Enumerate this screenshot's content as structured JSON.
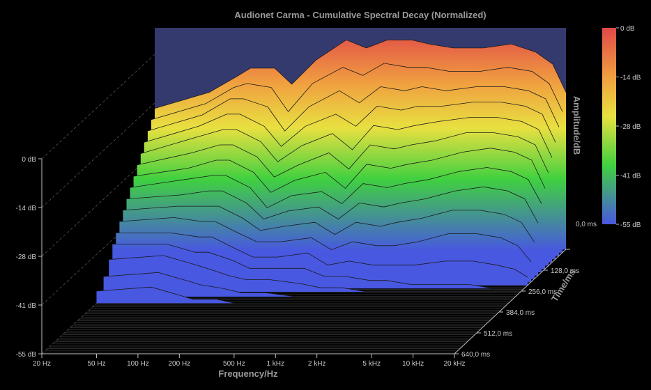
{
  "chart_data": {
    "type": "waterfall-3d",
    "title": "Audionet Carma - Cumulative Spectral Decay (Normalized)",
    "xlabel": "Frequency/Hz",
    "ylabel": "Amplitude/dB",
    "zlabel": "Time/ms",
    "x_scale": "log",
    "xlim": [
      20,
      20000
    ],
    "ylim": [
      -55,
      0
    ],
    "zlim": [
      0,
      640
    ],
    "x_ticks": [
      "20 Hz",
      "50 Hz",
      "100 Hz",
      "200 Hz",
      "500 Hz",
      "1 kHz",
      "2 kHz",
      "5 kHz",
      "10 kHz",
      "20 kHz"
    ],
    "x_tick_values": [
      20,
      50,
      100,
      200,
      500,
      1000,
      2000,
      5000,
      10000,
      20000
    ],
    "y_ticks": [
      "0 dB",
      "-14 dB",
      "-28 dB",
      "-41 dB",
      "-55 dB"
    ],
    "z_ticks": [
      "0,0 ms",
      "128,0 ms",
      "256,0 ms",
      "384,0 ms",
      "512,0 ms",
      "640,0 ms"
    ],
    "colorbar_labels": [
      "0 dB",
      "-14 dB",
      "-28 dB",
      "-41 dB",
      "-55 dB"
    ],
    "colorbar_colors": [
      "#e04848",
      "#f0a040",
      "#e8e040",
      "#40d040",
      "#4858e0"
    ],
    "background_color": "#353a6e",
    "num_slices": 16,
    "slice_profiles": [
      {
        "t": 0,
        "values": [
          [
            20,
            -20
          ],
          [
            50,
            -16
          ],
          [
            80,
            -12
          ],
          [
            100,
            -10
          ],
          [
            150,
            -10
          ],
          [
            200,
            -14
          ],
          [
            300,
            -8
          ],
          [
            500,
            -3
          ],
          [
            700,
            -5
          ],
          [
            1000,
            -3
          ],
          [
            1500,
            -3
          ],
          [
            2000,
            -4
          ],
          [
            3000,
            -5
          ],
          [
            5000,
            -5
          ],
          [
            8000,
            -4
          ],
          [
            12000,
            -6
          ],
          [
            16000,
            -9
          ],
          [
            20000,
            -16
          ]
        ]
      },
      {
        "t": 20,
        "values": [
          [
            20,
            -22
          ],
          [
            50,
            -18
          ],
          [
            80,
            -14
          ],
          [
            100,
            -13
          ],
          [
            150,
            -14
          ],
          [
            200,
            -20
          ],
          [
            300,
            -13
          ],
          [
            500,
            -9
          ],
          [
            700,
            -11
          ],
          [
            1000,
            -8
          ],
          [
            1500,
            -9
          ],
          [
            2000,
            -9
          ],
          [
            3000,
            -10
          ],
          [
            5000,
            -10
          ],
          [
            8000,
            -9
          ],
          [
            12000,
            -10
          ],
          [
            16000,
            -13
          ],
          [
            20000,
            -20
          ]
        ]
      },
      {
        "t": 40,
        "values": [
          [
            20,
            -24
          ],
          [
            50,
            -20
          ],
          [
            80,
            -16
          ],
          [
            100,
            -16
          ],
          [
            150,
            -18
          ],
          [
            200,
            -24
          ],
          [
            300,
            -18
          ],
          [
            500,
            -14
          ],
          [
            700,
            -17
          ],
          [
            1000,
            -13
          ],
          [
            1500,
            -14
          ],
          [
            2000,
            -13
          ],
          [
            3000,
            -14
          ],
          [
            5000,
            -13
          ],
          [
            8000,
            -13
          ],
          [
            12000,
            -14
          ],
          [
            16000,
            -16
          ],
          [
            20000,
            -23
          ]
        ]
      },
      {
        "t": 60,
        "values": [
          [
            20,
            -26
          ],
          [
            50,
            -22
          ],
          [
            80,
            -19
          ],
          [
            100,
            -19
          ],
          [
            150,
            -22
          ],
          [
            200,
            -27
          ],
          [
            300,
            -22
          ],
          [
            500,
            -19
          ],
          [
            700,
            -22
          ],
          [
            1000,
            -17
          ],
          [
            1500,
            -18
          ],
          [
            2000,
            -17
          ],
          [
            3000,
            -17
          ],
          [
            5000,
            -16
          ],
          [
            8000,
            -16
          ],
          [
            12000,
            -17
          ],
          [
            16000,
            -19
          ],
          [
            20000,
            -26
          ]
        ]
      },
      {
        "t": 80,
        "values": [
          [
            20,
            -28
          ],
          [
            50,
            -24
          ],
          [
            80,
            -22
          ],
          [
            100,
            -22
          ],
          [
            150,
            -25
          ],
          [
            200,
            -30
          ],
          [
            300,
            -26
          ],
          [
            500,
            -23
          ],
          [
            700,
            -27
          ],
          [
            1000,
            -21
          ],
          [
            1500,
            -22
          ],
          [
            2000,
            -21
          ],
          [
            3000,
            -20
          ],
          [
            5000,
            -19
          ],
          [
            8000,
            -19
          ],
          [
            12000,
            -20
          ],
          [
            16000,
            -22
          ],
          [
            20000,
            -29
          ]
        ]
      },
      {
        "t": 100,
        "values": [
          [
            20,
            -30
          ],
          [
            50,
            -27
          ],
          [
            80,
            -25
          ],
          [
            100,
            -25
          ],
          [
            150,
            -28
          ],
          [
            200,
            -33
          ],
          [
            300,
            -30
          ],
          [
            500,
            -27
          ],
          [
            700,
            -31
          ],
          [
            1000,
            -25
          ],
          [
            1500,
            -26
          ],
          [
            2000,
            -25
          ],
          [
            3000,
            -24
          ],
          [
            5000,
            -22
          ],
          [
            8000,
            -22
          ],
          [
            12000,
            -23
          ],
          [
            16000,
            -25
          ],
          [
            20000,
            -32
          ]
        ]
      },
      {
        "t": 120,
        "values": [
          [
            20,
            -32
          ],
          [
            50,
            -30
          ],
          [
            80,
            -28
          ],
          [
            100,
            -28
          ],
          [
            150,
            -31
          ],
          [
            200,
            -36
          ],
          [
            300,
            -33
          ],
          [
            500,
            -31
          ],
          [
            700,
            -35
          ],
          [
            1000,
            -29
          ],
          [
            1500,
            -30
          ],
          [
            2000,
            -29
          ],
          [
            3000,
            -28
          ],
          [
            5000,
            -26
          ],
          [
            8000,
            -25
          ],
          [
            12000,
            -26
          ],
          [
            16000,
            -28
          ],
          [
            20000,
            -35
          ]
        ]
      },
      {
        "t": 140,
        "values": [
          [
            20,
            -34
          ],
          [
            50,
            -32
          ],
          [
            80,
            -31
          ],
          [
            100,
            -31
          ],
          [
            150,
            -34
          ],
          [
            200,
            -39
          ],
          [
            300,
            -36
          ],
          [
            500,
            -35
          ],
          [
            700,
            -38
          ],
          [
            1000,
            -33
          ],
          [
            1500,
            -34
          ],
          [
            2000,
            -33
          ],
          [
            3000,
            -32
          ],
          [
            5000,
            -30
          ],
          [
            8000,
            -29
          ],
          [
            12000,
            -30
          ],
          [
            16000,
            -32
          ],
          [
            20000,
            -38
          ]
        ]
      },
      {
        "t": 160,
        "values": [
          [
            20,
            -36
          ],
          [
            50,
            -35
          ],
          [
            80,
            -34
          ],
          [
            100,
            -34
          ],
          [
            150,
            -37
          ],
          [
            200,
            -41
          ],
          [
            300,
            -39
          ],
          [
            500,
            -38
          ],
          [
            700,
            -41
          ],
          [
            1000,
            -37
          ],
          [
            1500,
            -38
          ],
          [
            2000,
            -37
          ],
          [
            3000,
            -36
          ],
          [
            5000,
            -34
          ],
          [
            8000,
            -33
          ],
          [
            12000,
            -34
          ],
          [
            16000,
            -36
          ],
          [
            20000,
            -42
          ]
        ]
      },
      {
        "t": 180,
        "values": [
          [
            20,
            -38
          ],
          [
            50,
            -37
          ],
          [
            80,
            -37
          ],
          [
            100,
            -37
          ],
          [
            150,
            -40
          ],
          [
            200,
            -43
          ],
          [
            300,
            -42
          ],
          [
            500,
            -41
          ],
          [
            700,
            -44
          ],
          [
            1000,
            -41
          ],
          [
            1500,
            -42
          ],
          [
            2000,
            -41
          ],
          [
            3000,
            -40
          ],
          [
            5000,
            -38
          ],
          [
            8000,
            -38
          ],
          [
            12000,
            -39
          ],
          [
            16000,
            -41
          ],
          [
            20000,
            -46
          ]
        ]
      },
      {
        "t": 200,
        "values": [
          [
            20,
            -40
          ],
          [
            50,
            -39
          ],
          [
            80,
            -40
          ],
          [
            100,
            -40
          ],
          [
            150,
            -43
          ],
          [
            200,
            -45
          ],
          [
            300,
            -45
          ],
          [
            500,
            -44
          ],
          [
            700,
            -47
          ],
          [
            1000,
            -45
          ],
          [
            1500,
            -46
          ],
          [
            2000,
            -46
          ],
          [
            3000,
            -45
          ],
          [
            5000,
            -43
          ],
          [
            8000,
            -43
          ],
          [
            12000,
            -44
          ],
          [
            16000,
            -46
          ],
          [
            20000,
            -50
          ]
        ]
      },
      {
        "t": 220,
        "values": [
          [
            20,
            -42
          ],
          [
            50,
            -42
          ],
          [
            80,
            -43
          ],
          [
            100,
            -43
          ],
          [
            150,
            -46
          ],
          [
            200,
            -48
          ],
          [
            300,
            -48
          ],
          [
            500,
            -47
          ],
          [
            700,
            -50
          ],
          [
            1000,
            -49
          ],
          [
            1500,
            -50
          ],
          [
            2000,
            -50
          ],
          [
            3000,
            -50
          ],
          [
            5000,
            -49
          ],
          [
            8000,
            -49
          ],
          [
            12000,
            -50
          ],
          [
            16000,
            -51
          ],
          [
            20000,
            -53
          ]
        ]
      },
      {
        "t": 240,
        "values": [
          [
            20,
            -44
          ],
          [
            50,
            -44
          ],
          [
            80,
            -46
          ],
          [
            100,
            -46
          ],
          [
            150,
            -48
          ],
          [
            200,
            -50
          ],
          [
            300,
            -50
          ],
          [
            500,
            -50
          ],
          [
            700,
            -52
          ],
          [
            1000,
            -52
          ],
          [
            1500,
            -53
          ],
          [
            2000,
            -53
          ],
          [
            3000,
            -54
          ],
          [
            5000,
            -54
          ],
          [
            8000,
            -54
          ],
          [
            12000,
            -55
          ],
          [
            16000,
            -55
          ],
          [
            20000,
            -55
          ]
        ]
      },
      {
        "t": 260,
        "values": [
          [
            20,
            -47
          ],
          [
            50,
            -46
          ],
          [
            80,
            -48
          ],
          [
            100,
            -49
          ],
          [
            150,
            -51
          ],
          [
            200,
            -52
          ],
          [
            300,
            -52
          ],
          [
            500,
            -53
          ],
          [
            700,
            -54
          ],
          [
            1000,
            -54
          ],
          [
            1500,
            -55
          ],
          [
            2000,
            -55
          ],
          [
            3000,
            -55
          ],
          [
            5000,
            -55
          ],
          [
            8000,
            -55
          ],
          [
            12000,
            -55
          ],
          [
            16000,
            -55
          ],
          [
            20000,
            -55
          ]
        ]
      },
      {
        "t": 290,
        "values": [
          [
            20,
            -50
          ],
          [
            50,
            -49
          ],
          [
            80,
            -51
          ],
          [
            100,
            -52
          ],
          [
            150,
            -53
          ],
          [
            200,
            -54
          ],
          [
            300,
            -54
          ],
          [
            500,
            -55
          ],
          [
            700,
            -55
          ],
          [
            1000,
            -55
          ],
          [
            1500,
            -55
          ],
          [
            2000,
            -55
          ],
          [
            3000,
            -55
          ],
          [
            5000,
            -55
          ],
          [
            8000,
            -55
          ],
          [
            12000,
            -55
          ],
          [
            16000,
            -55
          ],
          [
            20000,
            -55
          ]
        ]
      },
      {
        "t": 330,
        "values": [
          [
            20,
            -52
          ],
          [
            50,
            -51
          ],
          [
            80,
            -53
          ],
          [
            100,
            -54
          ],
          [
            150,
            -54
          ],
          [
            200,
            -55
          ],
          [
            300,
            -55
          ],
          [
            500,
            -55
          ],
          [
            700,
            -55
          ],
          [
            1000,
            -55
          ],
          [
            1500,
            -55
          ],
          [
            2000,
            -55
          ],
          [
            3000,
            -55
          ],
          [
            5000,
            -55
          ],
          [
            8000,
            -55
          ],
          [
            12000,
            -55
          ],
          [
            16000,
            -55
          ],
          [
            20000,
            -55
          ]
        ]
      }
    ]
  }
}
